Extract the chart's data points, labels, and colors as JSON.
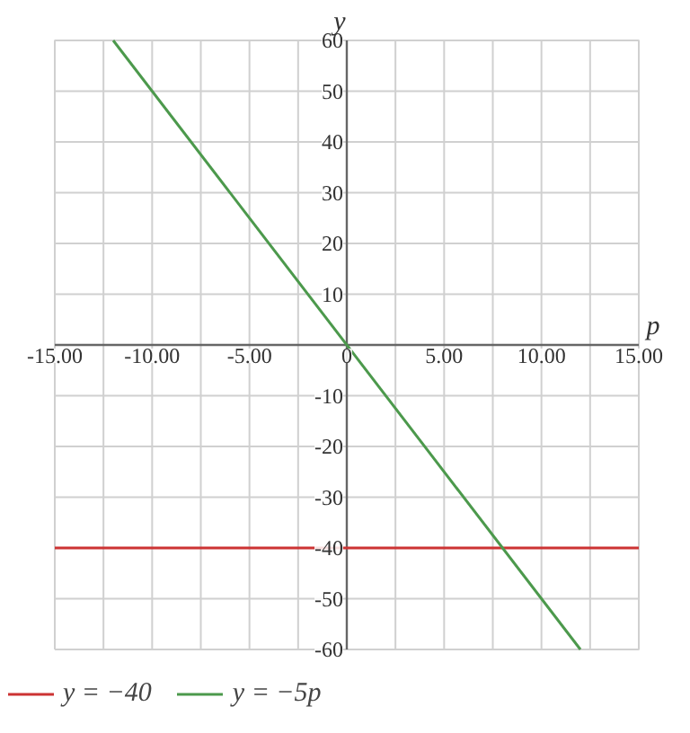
{
  "chart_data": {
    "type": "line",
    "xlabel": "p",
    "ylabel": "y",
    "xlim": [
      -15,
      15
    ],
    "ylim": [
      -60,
      60
    ],
    "xticks": [
      {
        "value": -15,
        "label": "-15.00"
      },
      {
        "value": -12.5,
        "label": null
      },
      {
        "value": -10,
        "label": "-10.00"
      },
      {
        "value": -7.5,
        "label": null
      },
      {
        "value": -5,
        "label": "-5.00"
      },
      {
        "value": -2.5,
        "label": null
      },
      {
        "value": 0,
        "label": "0"
      },
      {
        "value": 2.5,
        "label": null
      },
      {
        "value": 5,
        "label": "5.00"
      },
      {
        "value": 7.5,
        "label": null
      },
      {
        "value": 10,
        "label": "10.00"
      },
      {
        "value": 12.5,
        "label": null
      },
      {
        "value": 15,
        "label": "15.00"
      }
    ],
    "yticks": [
      -60,
      -50,
      -40,
      -30,
      -20,
      -10,
      {
        "value": 0,
        "label": null
      },
      10,
      20,
      30,
      40,
      50,
      60
    ],
    "series": [
      {
        "name": "y = −40",
        "color": "#cc3333",
        "x": [
          -15,
          15
        ],
        "values": [
          -40,
          -40
        ]
      },
      {
        "name": "y = −5p",
        "color": "#4c994c",
        "x": [
          -12,
          12
        ],
        "values": [
          60,
          -60
        ]
      }
    ],
    "grid": true,
    "legend": "bottom",
    "line_style": "solid",
    "marker": "none"
  }
}
